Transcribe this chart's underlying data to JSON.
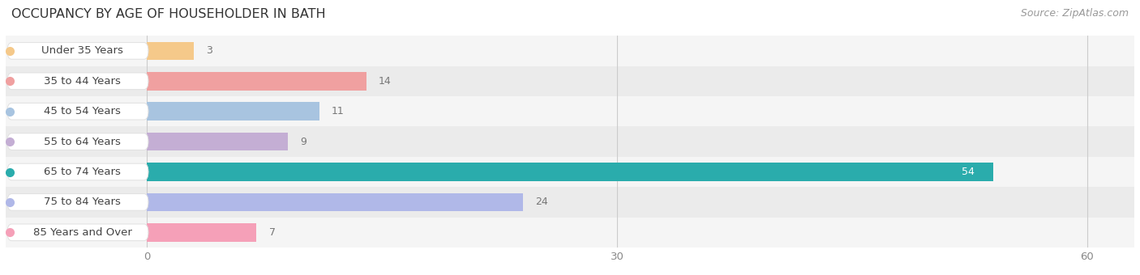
{
  "title": "OCCUPANCY BY AGE OF HOUSEHOLDER IN BATH",
  "source": "Source: ZipAtlas.com",
  "categories": [
    "Under 35 Years",
    "35 to 44 Years",
    "45 to 54 Years",
    "55 to 64 Years",
    "65 to 74 Years",
    "75 to 84 Years",
    "85 Years and Over"
  ],
  "values": [
    3,
    14,
    11,
    9,
    54,
    24,
    7
  ],
  "bar_colors": [
    "#f5c98a",
    "#f0a0a0",
    "#a8c4e0",
    "#c4aed4",
    "#2aacac",
    "#b0b8e8",
    "#f5a0b8"
  ],
  "xlim_min": -9,
  "xlim_max": 63,
  "xticks": [
    0,
    30,
    60
  ],
  "label_color_default": "#777777",
  "label_color_teal": "#ffffff",
  "bar_height": 0.6,
  "row_bg_colors": [
    "#f5f5f5",
    "#ebebeb"
  ],
  "title_fontsize": 11.5,
  "source_fontsize": 9,
  "tick_fontsize": 9.5,
  "label_fontsize": 9,
  "cat_fontsize": 9.5,
  "pill_bg": "#ffffff",
  "pill_edge_color": "#dddddd",
  "teal_index": 4
}
